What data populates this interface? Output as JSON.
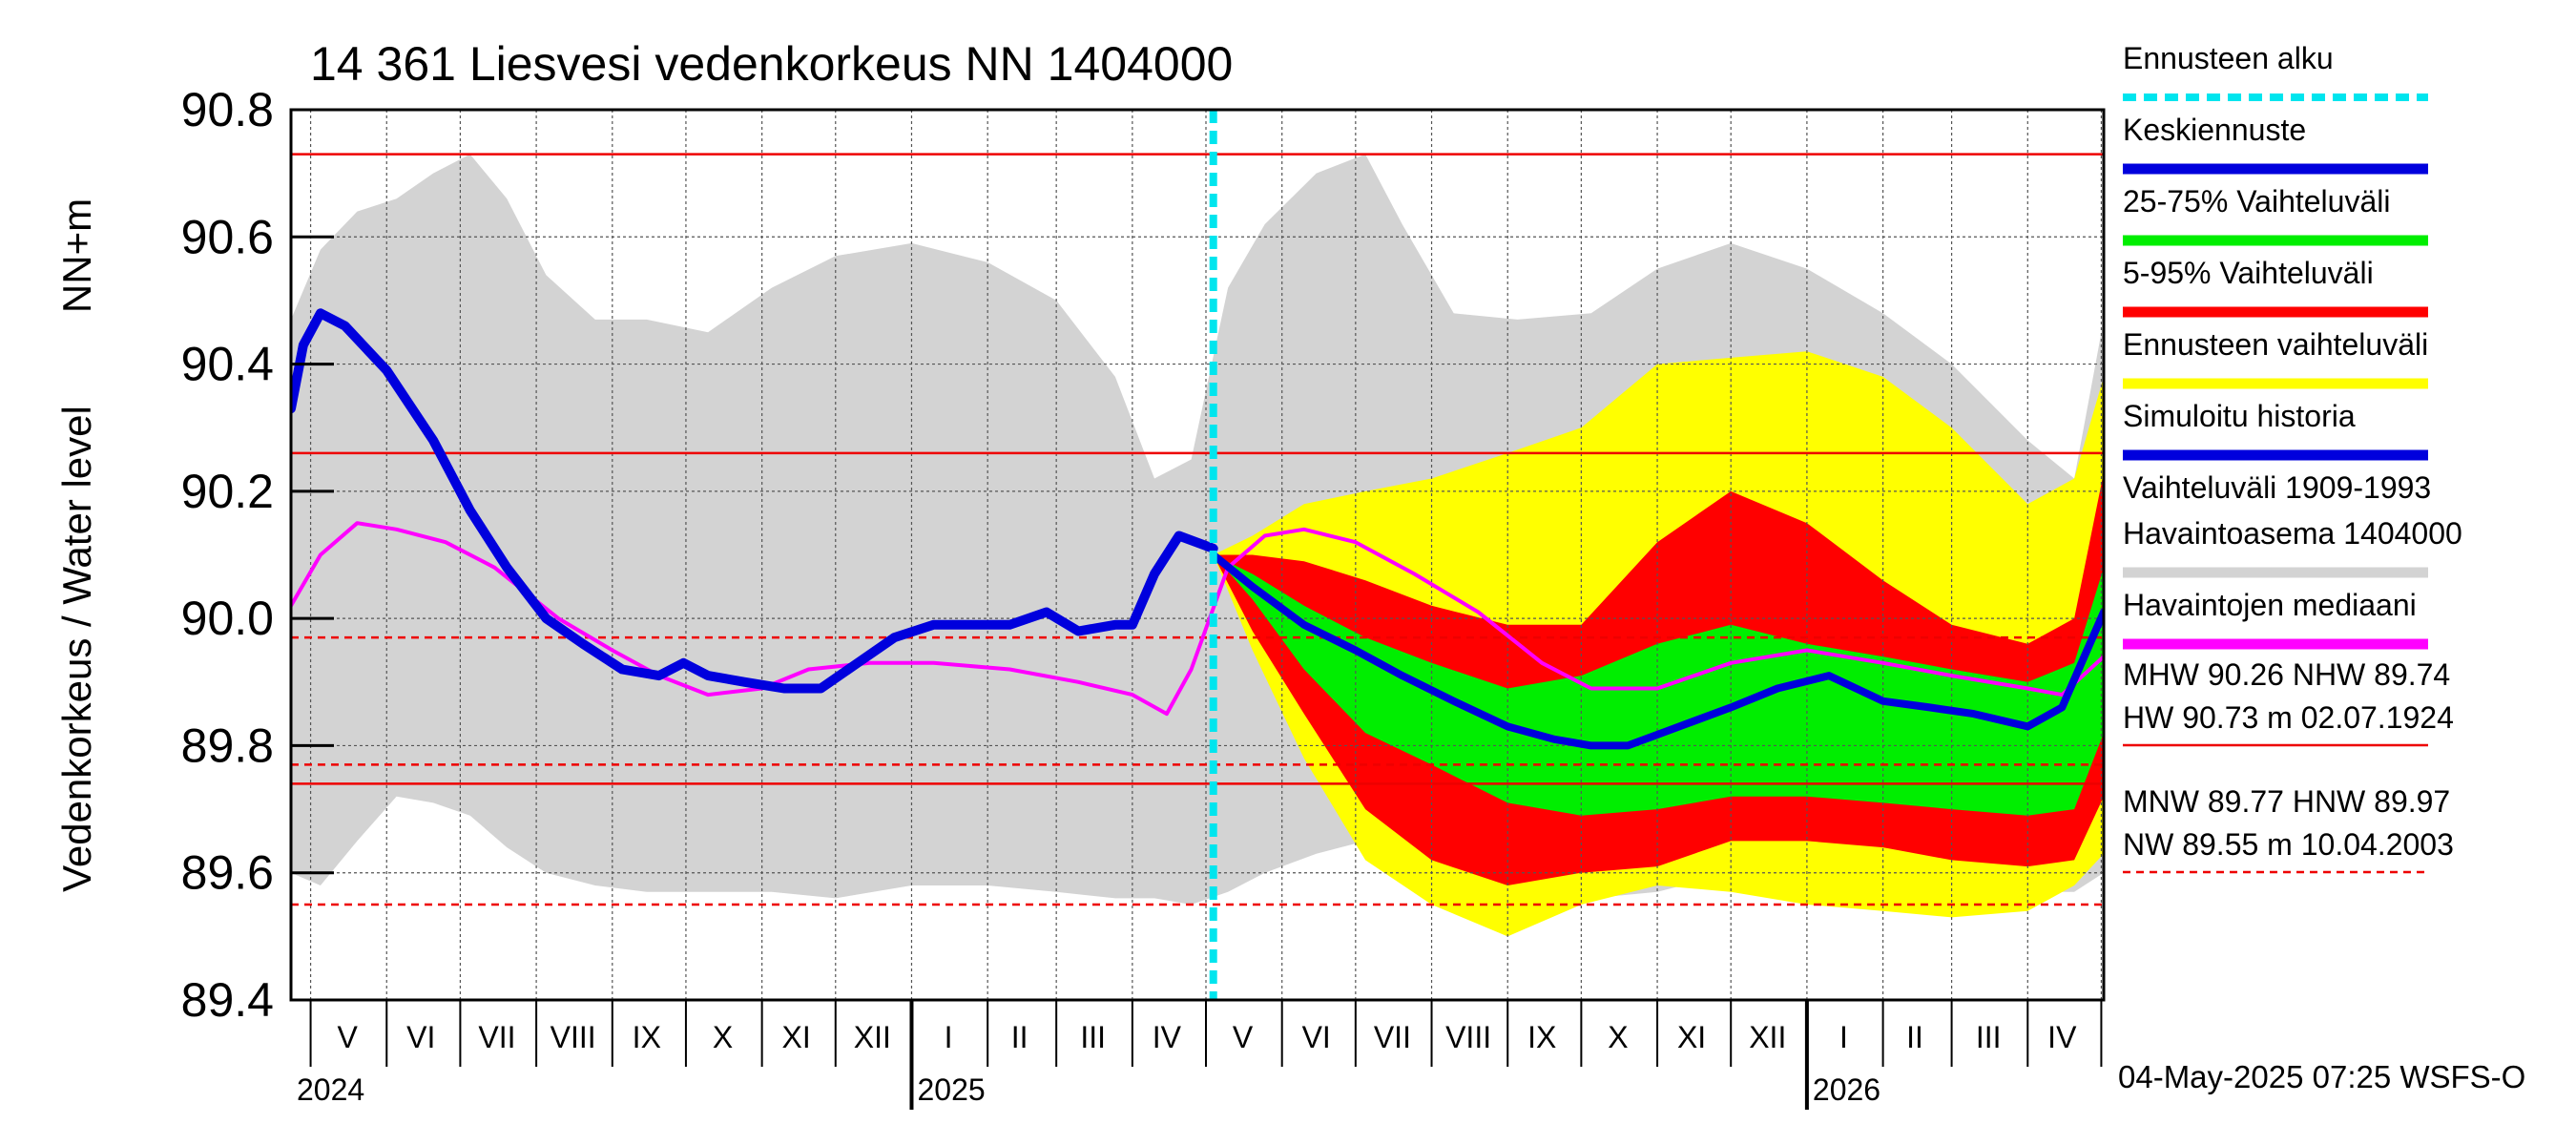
{
  "chart_data": {
    "type": "area",
    "title": "14 361 Liesvesi vedenkorkeus NN 1404000",
    "ylabel": "Vedenkorkeus / Water level",
    "yunit": "NN+m",
    "ylim": [
      89.4,
      90.8
    ],
    "yticks": [
      89.4,
      89.6,
      89.8,
      90.0,
      90.2,
      90.4,
      90.6,
      90.8
    ],
    "ytick_labels": [
      "89.4",
      "89.6",
      "89.8",
      "90.0",
      "90.2",
      "90.4",
      "90.6",
      "90.8"
    ],
    "xlim": [
      "2024-04-23",
      "2026-05-02"
    ],
    "grid": true,
    "legend_position": "right",
    "timestamp": "04-May-2025 07:25 WSFS-O",
    "forecast_start": "2025-05-04",
    "month_labels": [
      {
        "label": "V",
        "date": "2024-05-16"
      },
      {
        "label": "VI",
        "date": "2024-06-15"
      },
      {
        "label": "VII",
        "date": "2024-07-16"
      },
      {
        "label": "VIII",
        "date": "2024-08-16"
      },
      {
        "label": "IX",
        "date": "2024-09-15"
      },
      {
        "label": "X",
        "date": "2024-10-16"
      },
      {
        "label": "XI",
        "date": "2024-11-15"
      },
      {
        "label": "XII",
        "date": "2024-12-16"
      },
      {
        "label": "I",
        "date": "2025-01-16"
      },
      {
        "label": "II",
        "date": "2025-02-14"
      },
      {
        "label": "III",
        "date": "2025-03-16"
      },
      {
        "label": "IV",
        "date": "2025-04-15"
      },
      {
        "label": "V",
        "date": "2025-05-16"
      },
      {
        "label": "VI",
        "date": "2025-06-15"
      },
      {
        "label": "VII",
        "date": "2025-07-16"
      },
      {
        "label": "VIII",
        "date": "2025-08-16"
      },
      {
        "label": "IX",
        "date": "2025-09-15"
      },
      {
        "label": "X",
        "date": "2025-10-16"
      },
      {
        "label": "XI",
        "date": "2025-11-15"
      },
      {
        "label": "XII",
        "date": "2025-12-16"
      },
      {
        "label": "I",
        "date": "2026-01-16"
      },
      {
        "label": "II",
        "date": "2026-02-14"
      },
      {
        "label": "III",
        "date": "2026-03-16"
      },
      {
        "label": "IV",
        "date": "2026-04-15"
      }
    ],
    "month_boundaries": [
      "2024-05-01",
      "2024-06-01",
      "2024-07-01",
      "2024-08-01",
      "2024-09-01",
      "2024-10-01",
      "2024-11-01",
      "2024-12-01",
      "2025-01-01",
      "2025-02-01",
      "2025-03-01",
      "2025-04-01",
      "2025-05-01",
      "2025-06-01",
      "2025-07-01",
      "2025-08-01",
      "2025-09-01",
      "2025-10-01",
      "2025-11-01",
      "2025-12-01",
      "2026-01-01",
      "2026-02-01",
      "2026-03-01",
      "2026-04-01",
      "2026-05-01"
    ],
    "year_labels": [
      {
        "label": "2024",
        "date": "2024-04-23"
      },
      {
        "label": "2025",
        "date": "2025-01-01"
      },
      {
        "label": "2026",
        "date": "2026-01-01"
      }
    ],
    "reference_lines": [
      {
        "value": 90.73,
        "style": "solid"
      },
      {
        "value": 90.26,
        "style": "solid"
      },
      {
        "value": 89.97,
        "style": "dashed"
      },
      {
        "value": 89.77,
        "style": "dashed"
      },
      {
        "value": 89.74,
        "style": "solid"
      },
      {
        "value": 89.55,
        "style": "dashed"
      }
    ],
    "legend": [
      {
        "label": "Ennusteen alku",
        "color": "#00e5ee",
        "style": "dashed"
      },
      {
        "label": "Keskiennuste",
        "color": "#0000dd",
        "style": "solid"
      },
      {
        "label": "25-75% Vaihteluväli",
        "color": "#00ee00",
        "style": "solid"
      },
      {
        "label": "5-95% Vaihteluväli",
        "color": "#ff0000",
        "style": "solid"
      },
      {
        "label": "Ennusteen vaihteluväli",
        "color": "#ffff00",
        "style": "solid"
      },
      {
        "label": "Simuloitu historia",
        "color": "#0000dd",
        "style": "solid"
      },
      {
        "label": "Vaihteluväli 1909-1993\n Havaintoasema 1404000",
        "color": "#d3d3d3",
        "style": "solid"
      },
      {
        "label": "Havaintojen mediaani",
        "color": "#ff00ff",
        "style": "solid"
      }
    ],
    "stats_lines": [
      {
        "text": "MHW  90.26 NHW  89.74",
        "underline": "none"
      },
      {
        "text": "HW  90.73 m 02.07.1924",
        "underline": "solid"
      },
      {
        "text": "MNW  89.77 HNW  89.97",
        "underline": "none"
      },
      {
        "text": "NW  89.55 m 10.04.2003",
        "underline": "dashed"
      }
    ],
    "series": [
      {
        "name": "Vaihteluväli 1909-1993",
        "kind": "band",
        "color": "#d3d3d3",
        "x": [
          "2024-04-23",
          "2024-05-05",
          "2024-05-20",
          "2024-06-05",
          "2024-06-20",
          "2024-07-05",
          "2024-07-20",
          "2024-08-05",
          "2024-08-25",
          "2024-09-15",
          "2024-10-10",
          "2024-11-05",
          "2024-12-01",
          "2025-01-01",
          "2025-02-01",
          "2025-03-01",
          "2025-03-25",
          "2025-04-10",
          "2025-04-25",
          "2025-05-10",
          "2025-05-25",
          "2025-06-15",
          "2025-07-05",
          "2025-07-20",
          "2025-08-10",
          "2025-09-05",
          "2025-10-05",
          "2025-11-01",
          "2025-12-01",
          "2026-01-01",
          "2026-02-01",
          "2026-03-01",
          "2026-04-01",
          "2026-04-20",
          "2026-05-02"
        ],
        "upper": [
          90.47,
          90.58,
          90.64,
          90.66,
          90.7,
          90.73,
          90.66,
          90.54,
          90.47,
          90.47,
          90.45,
          90.52,
          90.57,
          90.59,
          90.56,
          90.5,
          90.38,
          90.22,
          90.25,
          90.52,
          90.62,
          90.7,
          90.73,
          90.62,
          90.48,
          90.47,
          90.48,
          90.55,
          90.59,
          90.55,
          90.48,
          90.4,
          90.28,
          90.22,
          90.47
        ],
        "lower": [
          89.6,
          89.58,
          89.65,
          89.72,
          89.71,
          89.69,
          89.64,
          89.6,
          89.58,
          89.57,
          89.57,
          89.57,
          89.56,
          89.58,
          89.58,
          89.57,
          89.56,
          89.56,
          89.55,
          89.57,
          89.6,
          89.63,
          89.65,
          89.63,
          89.6,
          89.58,
          89.56,
          89.57,
          89.6,
          89.6,
          89.59,
          89.58,
          89.57,
          89.57,
          89.6
        ]
      },
      {
        "name": "Ennusteen vaihteluväli",
        "kind": "band",
        "color": "#ffff00",
        "x": [
          "2025-05-04",
          "2025-05-20",
          "2025-06-10",
          "2025-07-05",
          "2025-08-01",
          "2025-09-01",
          "2025-10-01",
          "2025-11-01",
          "2025-12-01",
          "2026-01-01",
          "2026-02-01",
          "2026-03-01",
          "2026-04-01",
          "2026-04-20",
          "2026-05-02"
        ],
        "upper": [
          90.1,
          90.13,
          90.18,
          90.2,
          90.22,
          90.26,
          90.3,
          90.4,
          90.41,
          90.42,
          90.38,
          90.3,
          90.18,
          90.22,
          90.38
        ],
        "lower": [
          90.1,
          89.95,
          89.78,
          89.62,
          89.55,
          89.5,
          89.55,
          89.58,
          89.57,
          89.55,
          89.54,
          89.53,
          89.54,
          89.58,
          89.63
        ]
      },
      {
        "name": "5-95% Vaihteluväli",
        "kind": "band",
        "color": "#ff0000",
        "x": [
          "2025-05-04",
          "2025-05-20",
          "2025-06-10",
          "2025-07-05",
          "2025-08-01",
          "2025-09-01",
          "2025-10-01",
          "2025-11-01",
          "2025-12-01",
          "2026-01-01",
          "2026-02-01",
          "2026-03-01",
          "2026-04-01",
          "2026-04-20",
          "2026-05-02"
        ],
        "upper": [
          90.1,
          90.1,
          90.09,
          90.06,
          90.02,
          89.99,
          89.99,
          90.12,
          90.2,
          90.15,
          90.06,
          89.99,
          89.96,
          90.0,
          90.23
        ],
        "lower": [
          90.1,
          89.98,
          89.85,
          89.7,
          89.62,
          89.58,
          89.6,
          89.61,
          89.65,
          89.65,
          89.64,
          89.62,
          89.61,
          89.62,
          89.72
        ]
      },
      {
        "name": "25-75% Vaihteluväli",
        "kind": "band",
        "color": "#00ee00",
        "x": [
          "2025-05-04",
          "2025-05-20",
          "2025-06-10",
          "2025-07-05",
          "2025-08-01",
          "2025-09-01",
          "2025-10-01",
          "2025-11-01",
          "2025-12-01",
          "2026-01-01",
          "2026-02-01",
          "2026-03-01",
          "2026-04-01",
          "2026-04-20",
          "2026-05-02"
        ],
        "upper": [
          90.1,
          90.07,
          90.02,
          89.97,
          89.93,
          89.89,
          89.91,
          89.96,
          89.99,
          89.96,
          89.94,
          89.92,
          89.9,
          89.93,
          90.08
        ],
        "lower": [
          90.1,
          90.03,
          89.92,
          89.82,
          89.77,
          89.71,
          89.69,
          89.7,
          89.72,
          89.72,
          89.71,
          89.7,
          89.69,
          89.7,
          89.82
        ]
      },
      {
        "name": "Havaintojen mediaani",
        "kind": "line",
        "color": "#ff00ff",
        "width": 4,
        "x": [
          "2024-04-23",
          "2024-05-05",
          "2024-05-20",
          "2024-06-05",
          "2024-06-25",
          "2024-07-15",
          "2024-08-10",
          "2024-09-01",
          "2024-09-20",
          "2024-10-10",
          "2024-11-01",
          "2024-11-20",
          "2024-12-15",
          "2025-01-10",
          "2025-02-10",
          "2025-03-10",
          "2025-04-01",
          "2025-04-15",
          "2025-04-25",
          "2025-05-10",
          "2025-05-25",
          "2025-06-10",
          "2025-07-01",
          "2025-07-25",
          "2025-08-20",
          "2025-09-15",
          "2025-10-05",
          "2025-11-01",
          "2025-12-01",
          "2026-01-01",
          "2026-02-01",
          "2026-03-01",
          "2026-04-01",
          "2026-04-15",
          "2026-05-02"
        ],
        "y": [
          90.02,
          90.1,
          90.15,
          90.14,
          90.12,
          90.08,
          90.0,
          89.95,
          89.91,
          89.88,
          89.89,
          89.92,
          89.93,
          89.93,
          89.92,
          89.9,
          89.88,
          89.85,
          89.92,
          90.08,
          90.13,
          90.14,
          90.12,
          90.07,
          90.01,
          89.93,
          89.89,
          89.89,
          89.93,
          89.95,
          89.93,
          89.91,
          89.89,
          89.88,
          89.94
        ]
      },
      {
        "name": "Simuloitu historia",
        "kind": "line",
        "color": "#0000dd",
        "width": 10,
        "x": [
          "2024-04-23",
          "2024-04-28",
          "2024-05-05",
          "2024-05-15",
          "2024-06-01",
          "2024-06-20",
          "2024-07-05",
          "2024-07-20",
          "2024-08-05",
          "2024-08-20",
          "2024-09-05",
          "2024-09-20",
          "2024-09-30",
          "2024-10-10",
          "2024-10-25",
          "2024-11-10",
          "2024-11-25",
          "2024-12-10",
          "2024-12-25",
          "2025-01-10",
          "2025-01-25",
          "2025-02-10",
          "2025-02-25",
          "2025-03-10",
          "2025-03-25",
          "2025-04-01",
          "2025-04-10",
          "2025-04-20",
          "2025-05-04"
        ],
        "y": [
          90.33,
          90.43,
          90.48,
          90.46,
          90.39,
          90.28,
          90.17,
          90.08,
          90.0,
          89.96,
          89.92,
          89.91,
          89.93,
          89.91,
          89.9,
          89.89,
          89.89,
          89.93,
          89.97,
          89.99,
          89.99,
          89.99,
          90.01,
          89.98,
          89.99,
          89.99,
          90.07,
          90.13,
          90.11
        ]
      },
      {
        "name": "Keskiennuste",
        "kind": "line",
        "color": "#0000dd",
        "width": 8,
        "x": [
          "2025-05-04",
          "2025-05-20",
          "2025-06-10",
          "2025-07-01",
          "2025-07-20",
          "2025-08-10",
          "2025-09-01",
          "2025-09-20",
          "2025-10-05",
          "2025-10-20",
          "2025-11-10",
          "2025-12-01",
          "2025-12-20",
          "2026-01-10",
          "2026-02-01",
          "2026-02-20",
          "2026-03-10",
          "2026-04-01",
          "2026-04-15",
          "2026-05-02"
        ],
        "y": [
          90.1,
          90.05,
          89.99,
          89.95,
          89.91,
          89.87,
          89.83,
          89.81,
          89.8,
          89.8,
          89.83,
          89.86,
          89.89,
          89.91,
          89.87,
          89.86,
          89.85,
          89.83,
          89.86,
          90.01
        ]
      }
    ]
  }
}
